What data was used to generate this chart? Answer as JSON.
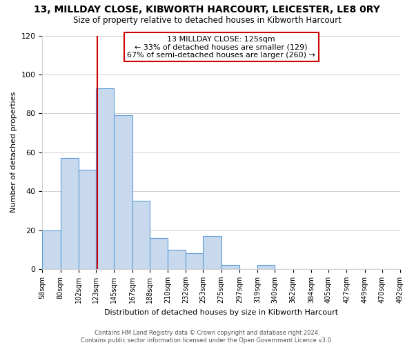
{
  "title": "13, MILLDAY CLOSE, KIBWORTH HARCOURT, LEICESTER, LE8 0RY",
  "subtitle": "Size of property relative to detached houses in Kibworth Harcourt",
  "xlabel": "Distribution of detached houses by size in Kibworth Harcourt",
  "ylabel": "Number of detached properties",
  "bin_edges": [
    58,
    80,
    102,
    123,
    145,
    167,
    188,
    210,
    232,
    253,
    275,
    297,
    319,
    340,
    362,
    384,
    405,
    427,
    449,
    470,
    492
  ],
  "bar_heights": [
    20,
    57,
    51,
    93,
    79,
    35,
    16,
    10,
    8,
    17,
    2,
    0,
    2,
    0,
    0,
    0,
    0,
    0,
    0,
    0
  ],
  "bar_color": "#c8d9ee",
  "bar_edge_color": "#5b9bd5",
  "property_line_x": 125,
  "property_line_color": "#cc0000",
  "annotation_title": "13 MILLDAY CLOSE: 125sqm",
  "annotation_line1": "← 33% of detached houses are smaller (129)",
  "annotation_line2": "67% of semi-detached houses are larger (260) →",
  "annotation_box_edge": "#cc0000",
  "ylim": [
    0,
    120
  ],
  "yticks": [
    0,
    20,
    40,
    60,
    80,
    100,
    120
  ],
  "tick_labels": [
    "58sqm",
    "80sqm",
    "102sqm",
    "123sqm",
    "145sqm",
    "167sqm",
    "188sqm",
    "210sqm",
    "232sqm",
    "253sqm",
    "275sqm",
    "297sqm",
    "319sqm",
    "340sqm",
    "362sqm",
    "384sqm",
    "405sqm",
    "427sqm",
    "449sqm",
    "470sqm",
    "492sqm"
  ],
  "footer_line1": "Contains HM Land Registry data © Crown copyright and database right 2024.",
  "footer_line2": "Contains public sector information licensed under the Open Government Licence v3.0.",
  "background_color": "#ffffff",
  "grid_color": "#d0d0d0"
}
